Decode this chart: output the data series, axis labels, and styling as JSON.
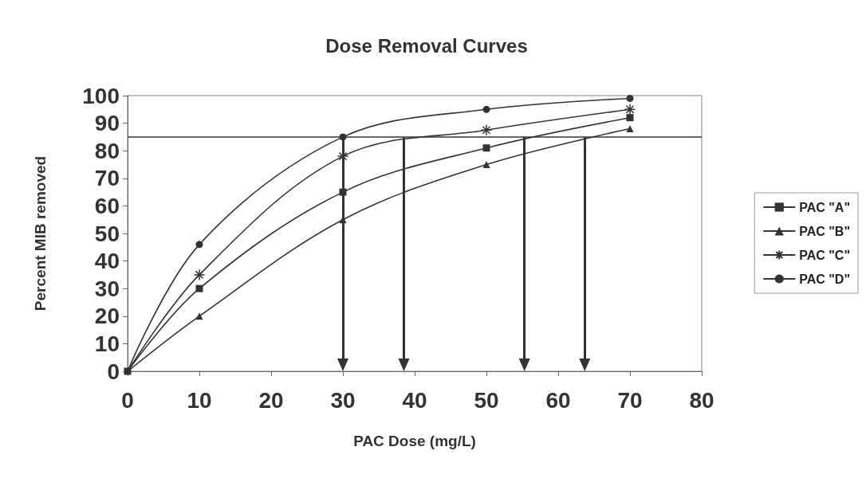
{
  "chart_data": {
    "type": "line",
    "title": "Dose Removal Curves",
    "xlabel": "PAC Dose (mg/L)",
    "ylabel": "Percent MIB removed",
    "x": [
      0,
      10,
      30,
      50,
      70
    ],
    "series": [
      {
        "name": "PAC \"A\"",
        "color": "#333333",
        "marker": "square",
        "values": [
          0,
          30,
          65,
          81,
          92
        ]
      },
      {
        "name": "PAC \"B\"",
        "color": "#333333",
        "marker": "triangle",
        "values": [
          0,
          20,
          55,
          75,
          88
        ]
      },
      {
        "name": "PAC \"C\"",
        "color": "#333333",
        "marker": "cross",
        "values": [
          0,
          35,
          78,
          87.5,
          95
        ]
      },
      {
        "name": "PAC \"D\"",
        "color": "#333333",
        "marker": "circle",
        "values": [
          0,
          46,
          85,
          95,
          99
        ]
      }
    ],
    "xlim": [
      0,
      80
    ],
    "xticks": [
      0,
      10,
      20,
      30,
      40,
      50,
      60,
      70,
      80
    ],
    "ylim": [
      0,
      100
    ],
    "yticks": [
      0,
      10,
      20,
      30,
      40,
      50,
      60,
      70,
      80,
      90,
      100
    ],
    "ref_lines": [
      {
        "axis": "y",
        "value": 85,
        "color": "#333333"
      },
      {
        "axis": "x",
        "value": 30,
        "color": "#333333"
      },
      {
        "axis": "x",
        "value": 38.5,
        "color": "#333333"
      },
      {
        "axis": "x",
        "value": 55.3,
        "color": "#333333"
      },
      {
        "axis": "x",
        "value": 63.7,
        "color": "#333333"
      }
    ],
    "grid": false,
    "legend": "right"
  }
}
